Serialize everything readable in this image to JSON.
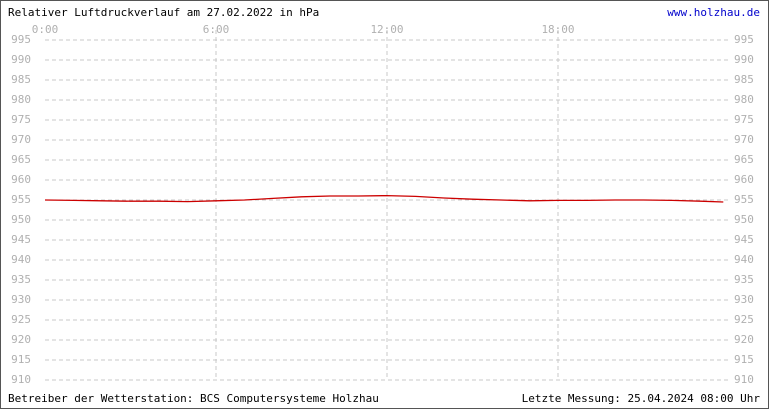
{
  "chart_data": {
    "type": "line",
    "title": "Relativer Luftdruckverlauf am 27.02.2022 in hPa",
    "link": "www.holzhau.de",
    "footer_left": "Betreiber der Wetterstation: BCS Computersysteme Holzhau",
    "footer_right": "Letzte Messung: 25.04.2024 08:00 Uhr",
    "x": [
      0,
      1,
      2,
      3,
      4,
      5,
      6,
      7,
      8,
      9,
      10,
      11,
      12,
      13,
      14,
      15,
      16,
      17,
      18,
      19,
      20,
      21,
      22,
      23,
      23.8
    ],
    "series": [
      {
        "color": "#cc0000",
        "values": [
          955,
          954.9,
          954.8,
          954.7,
          954.7,
          954.6,
          954.8,
          955,
          955.4,
          955.8,
          956,
          956,
          956.1,
          955.9,
          955.5,
          955.2,
          955,
          954.8,
          954.9,
          954.9,
          955,
          955,
          954.9,
          954.7,
          954.5
        ]
      }
    ],
    "xlim": [
      0,
      24
    ],
    "xticks": [
      {
        "value": 0,
        "label": "0:00"
      },
      {
        "value": 6,
        "label": "6:00"
      },
      {
        "value": 12,
        "label": "12:00"
      },
      {
        "value": 18,
        "label": "18:00"
      }
    ],
    "ylim": [
      910,
      995
    ],
    "yticks": [
      910,
      915,
      920,
      925,
      930,
      935,
      940,
      945,
      950,
      955,
      960,
      965,
      970,
      975,
      980,
      985,
      990,
      995
    ],
    "grid": true
  }
}
